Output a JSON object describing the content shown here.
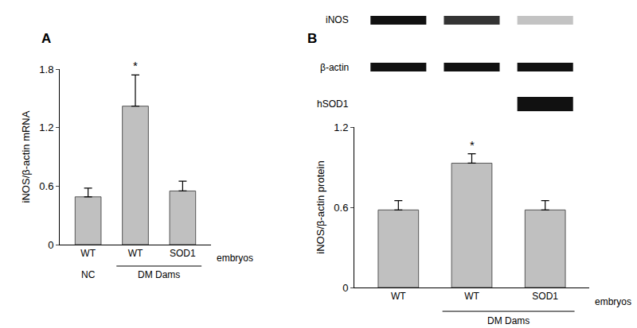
{
  "chart_data": [
    {
      "type": "bar",
      "title": "A",
      "categories": [
        "WT",
        "WT",
        "SOD1"
      ],
      "values": [
        0.49,
        1.42,
        0.55
      ],
      "errors": [
        0.09,
        0.32,
        0.1
      ],
      "color": "#c0c0c0",
      "ylabel": "iNOS/β-actin mRNA",
      "xlabel": "embryos",
      "ylim": [
        0,
        1.8
      ],
      "yticks": [
        0,
        0.6,
        1.2,
        1.8
      ],
      "groups": [
        {
          "label": "NC",
          "from": 0,
          "to": 0
        },
        {
          "label": "DM Dams",
          "from": 1,
          "to": 2
        }
      ],
      "annotations": [
        {
          "index": 1,
          "text": "*"
        }
      ]
    },
    {
      "type": "bar",
      "title": "B",
      "categories": [
        "WT",
        "WT",
        "SOD1"
      ],
      "values": [
        0.58,
        0.93,
        0.58
      ],
      "errors": [
        0.07,
        0.07,
        0.07
      ],
      "color": "#c0c0c0",
      "ylabel": "iNOS/β-actin protein",
      "xlabel": "embryos",
      "ylim": [
        0,
        1.2
      ],
      "yticks": [
        0,
        0.6,
        1.2
      ],
      "groups": [
        {
          "label": "DM Dams",
          "from": 1,
          "to": 2
        }
      ],
      "annotations": [
        {
          "index": 1,
          "text": "*"
        }
      ],
      "blot": [
        {
          "label": "iNOS",
          "intensity": [
            1,
            0.85,
            0.25
          ]
        },
        {
          "label": "β-actin",
          "intensity": [
            1,
            1,
            1
          ]
        },
        {
          "label": "hSOD1",
          "intensity": [
            0,
            0,
            1
          ]
        }
      ]
    }
  ]
}
